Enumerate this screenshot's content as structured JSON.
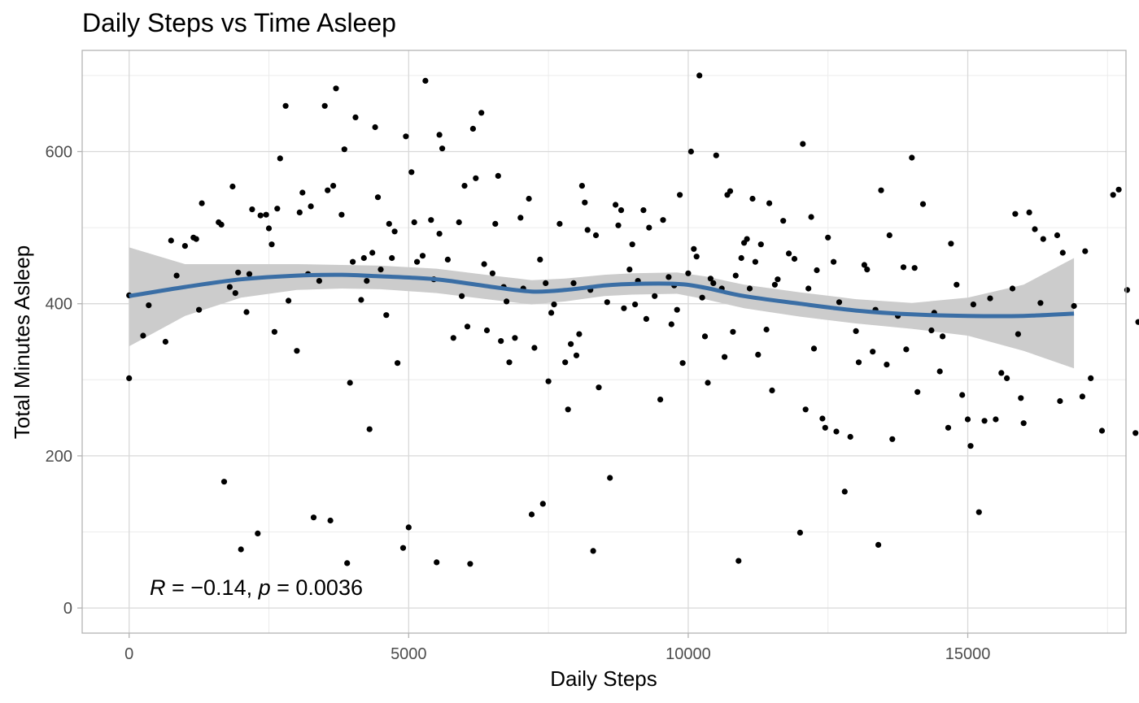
{
  "chart_data": {
    "type": "scatter",
    "title": "Daily Steps vs Time Asleep",
    "xlabel": "Daily Steps",
    "ylabel": "Total Minutes Asleep",
    "xlim": [
      -840,
      17830
    ],
    "ylim": [
      -33,
      733
    ],
    "x_ticks": [
      0,
      5000,
      10000,
      15000
    ],
    "x_tick_labels": [
      "0",
      "5000",
      "10000",
      "15000"
    ],
    "y_ticks": [
      0,
      200,
      400,
      600
    ],
    "y_tick_labels": [
      "0",
      "200",
      "400",
      "600"
    ],
    "grid": true,
    "annotation": {
      "R_symbol": "R",
      "R_text": " = −0.14, ",
      "p_symbol": "p",
      "p_text": " = 0.0036"
    },
    "colors": {
      "points": "#000000",
      "smooth": "#3a6ea5",
      "confidence_band": "#cccccc",
      "grid_major": "#d9d9d9",
      "grid_minor": "#ececec",
      "panel_border": "#b3b3b3"
    },
    "smooth": {
      "x": [
        0,
        1000,
        2000,
        3000,
        3800,
        4500,
        5500,
        6500,
        7200,
        7800,
        8500,
        9000,
        9800,
        10300,
        11000,
        12000,
        13000,
        14000,
        15000,
        16000,
        16900
      ],
      "y": [
        410,
        422,
        432,
        437,
        438,
        436,
        432,
        422,
        416,
        418,
        424,
        426,
        426,
        421,
        410,
        400,
        391,
        386,
        384,
        384,
        387
      ],
      "lower": [
        344,
        384,
        408,
        418,
        420,
        419,
        414,
        405,
        399,
        403,
        410,
        412,
        413,
        406,
        394,
        383,
        374,
        367,
        358,
        338,
        315
      ],
      "upper": [
        474,
        452,
        452,
        452,
        451,
        450,
        446,
        437,
        431,
        433,
        438,
        440,
        441,
        436,
        425,
        415,
        406,
        401,
        408,
        425,
        460
      ]
    },
    "points": [
      [
        0,
        411
      ],
      [
        0,
        302
      ],
      [
        250,
        358
      ],
      [
        350,
        398
      ],
      [
        650,
        350
      ],
      [
        750,
        483
      ],
      [
        850,
        437
      ],
      [
        1000,
        476
      ],
      [
        1150,
        487
      ],
      [
        1200,
        485
      ],
      [
        1250,
        392
      ],
      [
        1300,
        532
      ],
      [
        1600,
        507
      ],
      [
        1650,
        504
      ],
      [
        1700,
        166
      ],
      [
        1800,
        422
      ],
      [
        1850,
        554
      ],
      [
        1900,
        414
      ],
      [
        1950,
        441
      ],
      [
        2000,
        77
      ],
      [
        2100,
        389
      ],
      [
        2150,
        439
      ],
      [
        2200,
        524
      ],
      [
        2300,
        98
      ],
      [
        2350,
        516
      ],
      [
        2450,
        517
      ],
      [
        2500,
        499
      ],
      [
        2550,
        478
      ],
      [
        2600,
        363
      ],
      [
        2650,
        525
      ],
      [
        2700,
        591
      ],
      [
        2800,
        660
      ],
      [
        2850,
        404
      ],
      [
        3000,
        338
      ],
      [
        3050,
        520
      ],
      [
        3100,
        546
      ],
      [
        3200,
        439
      ],
      [
        3250,
        528
      ],
      [
        3300,
        119
      ],
      [
        3400,
        430
      ],
      [
        3500,
        660
      ],
      [
        3550,
        549
      ],
      [
        3600,
        115
      ],
      [
        3650,
        555
      ],
      [
        3700,
        683
      ],
      [
        3800,
        517
      ],
      [
        3850,
        603
      ],
      [
        3900,
        59
      ],
      [
        3950,
        296
      ],
      [
        4000,
        455
      ],
      [
        4050,
        645
      ],
      [
        4150,
        405
      ],
      [
        4200,
        460
      ],
      [
        4250,
        430
      ],
      [
        4300,
        235
      ],
      [
        4350,
        467
      ],
      [
        4400,
        632
      ],
      [
        4450,
        540
      ],
      [
        4500,
        445
      ],
      [
        4600,
        385
      ],
      [
        4650,
        505
      ],
      [
        4700,
        460
      ],
      [
        4750,
        495
      ],
      [
        4800,
        322
      ],
      [
        4900,
        79
      ],
      [
        4950,
        620
      ],
      [
        5000,
        106
      ],
      [
        5050,
        573
      ],
      [
        5100,
        507
      ],
      [
        5150,
        455
      ],
      [
        5250,
        463
      ],
      [
        5300,
        693
      ],
      [
        5400,
        510
      ],
      [
        5450,
        432
      ],
      [
        5500,
        60
      ],
      [
        5550,
        492
      ],
      [
        5550,
        622
      ],
      [
        5600,
        604
      ],
      [
        5700,
        458
      ],
      [
        5800,
        355
      ],
      [
        5900,
        507
      ],
      [
        5950,
        410
      ],
      [
        6000,
        555
      ],
      [
        6050,
        370
      ],
      [
        6100,
        58
      ],
      [
        6150,
        630
      ],
      [
        6200,
        565
      ],
      [
        6300,
        651
      ],
      [
        6350,
        452
      ],
      [
        6400,
        365
      ],
      [
        6500,
        440
      ],
      [
        6550,
        505
      ],
      [
        6600,
        568
      ],
      [
        6650,
        351
      ],
      [
        6700,
        422
      ],
      [
        6750,
        403
      ],
      [
        6800,
        323
      ],
      [
        6900,
        355
      ],
      [
        7000,
        513
      ],
      [
        7050,
        420
      ],
      [
        7150,
        538
      ],
      [
        7200,
        123
      ],
      [
        7250,
        342
      ],
      [
        7350,
        458
      ],
      [
        7400,
        137
      ],
      [
        7450,
        427
      ],
      [
        7500,
        298
      ],
      [
        7550,
        388
      ],
      [
        7600,
        399
      ],
      [
        7700,
        505
      ],
      [
        7800,
        323
      ],
      [
        7850,
        261
      ],
      [
        7900,
        347
      ],
      [
        7950,
        427
      ],
      [
        8000,
        332
      ],
      [
        8050,
        360
      ],
      [
        8100,
        555
      ],
      [
        8150,
        533
      ],
      [
        8200,
        497
      ],
      [
        8250,
        418
      ],
      [
        8300,
        75
      ],
      [
        8350,
        490
      ],
      [
        8400,
        290
      ],
      [
        8550,
        402
      ],
      [
        8600,
        171
      ],
      [
        8700,
        530
      ],
      [
        8750,
        503
      ],
      [
        8800,
        523
      ],
      [
        8850,
        394
      ],
      [
        8950,
        445
      ],
      [
        9000,
        478
      ],
      [
        9050,
        399
      ],
      [
        9100,
        430
      ],
      [
        9200,
        523
      ],
      [
        9250,
        380
      ],
      [
        9300,
        500
      ],
      [
        9400,
        410
      ],
      [
        9500,
        274
      ],
      [
        9550,
        510
      ],
      [
        9650,
        435
      ],
      [
        9700,
        373
      ],
      [
        9750,
        424
      ],
      [
        9800,
        392
      ],
      [
        9850,
        543
      ],
      [
        9900,
        322
      ],
      [
        10000,
        440
      ],
      [
        10050,
        600
      ],
      [
        10100,
        472
      ],
      [
        10150,
        462
      ],
      [
        10200,
        700
      ],
      [
        10250,
        408
      ],
      [
        10300,
        357
      ],
      [
        10350,
        296
      ],
      [
        10400,
        433
      ],
      [
        10450,
        427
      ],
      [
        10500,
        595
      ],
      [
        10600,
        420
      ],
      [
        10650,
        330
      ],
      [
        10700,
        543
      ],
      [
        10750,
        548
      ],
      [
        10800,
        363
      ],
      [
        10850,
        437
      ],
      [
        10900,
        62
      ],
      [
        10950,
        460
      ],
      [
        11000,
        480
      ],
      [
        11050,
        485
      ],
      [
        11100,
        420
      ],
      [
        11150,
        538
      ],
      [
        11200,
        455
      ],
      [
        11250,
        333
      ],
      [
        11300,
        478
      ],
      [
        11400,
        366
      ],
      [
        11450,
        532
      ],
      [
        11500,
        286
      ],
      [
        11550,
        425
      ],
      [
        11600,
        432
      ],
      [
        11700,
        509
      ],
      [
        11800,
        466
      ],
      [
        11900,
        459
      ],
      [
        12000,
        99
      ],
      [
        12050,
        610
      ],
      [
        12100,
        261
      ],
      [
        12150,
        420
      ],
      [
        12200,
        514
      ],
      [
        12250,
        341
      ],
      [
        12300,
        444
      ],
      [
        12400,
        249
      ],
      [
        12450,
        237
      ],
      [
        12500,
        487
      ],
      [
        12600,
        455
      ],
      [
        12650,
        232
      ],
      [
        12700,
        402
      ],
      [
        12800,
        153
      ],
      [
        12900,
        225
      ],
      [
        13000,
        364
      ],
      [
        13050,
        323
      ],
      [
        13150,
        451
      ],
      [
        13200,
        445
      ],
      [
        13300,
        337
      ],
      [
        13350,
        392
      ],
      [
        13400,
        83
      ],
      [
        13450,
        549
      ],
      [
        13550,
        320
      ],
      [
        13600,
        490
      ],
      [
        13650,
        222
      ],
      [
        13750,
        384
      ],
      [
        13850,
        448
      ],
      [
        13900,
        340
      ],
      [
        14000,
        592
      ],
      [
        14050,
        447
      ],
      [
        14100,
        284
      ],
      [
        14200,
        531
      ],
      [
        14350,
        365
      ],
      [
        14400,
        388
      ],
      [
        14500,
        311
      ],
      [
        14550,
        357
      ],
      [
        14650,
        237
      ],
      [
        14700,
        479
      ],
      [
        14800,
        425
      ],
      [
        14900,
        280
      ],
      [
        15000,
        248
      ],
      [
        15050,
        213
      ],
      [
        15100,
        399
      ],
      [
        15200,
        126
      ],
      [
        15300,
        246
      ],
      [
        15400,
        407
      ],
      [
        15500,
        248
      ],
      [
        15600,
        309
      ],
      [
        15700,
        302
      ],
      [
        15800,
        420
      ],
      [
        15850,
        518
      ],
      [
        15900,
        360
      ],
      [
        15950,
        276
      ],
      [
        16000,
        243
      ],
      [
        16100,
        520
      ],
      [
        16200,
        498
      ],
      [
        16300,
        401
      ],
      [
        16350,
        485
      ],
      [
        16600,
        490
      ],
      [
        16650,
        272
      ],
      [
        16700,
        467
      ],
      [
        16900,
        397
      ],
      [
        17050,
        278
      ],
      [
        17100,
        469
      ],
      [
        17200,
        302
      ],
      [
        17400,
        233
      ],
      [
        17600,
        543
      ],
      [
        17700,
        550
      ],
      [
        17850,
        418
      ],
      [
        18000,
        230
      ],
      [
        18050,
        376
      ],
      [
        18200,
        374
      ]
    ]
  }
}
